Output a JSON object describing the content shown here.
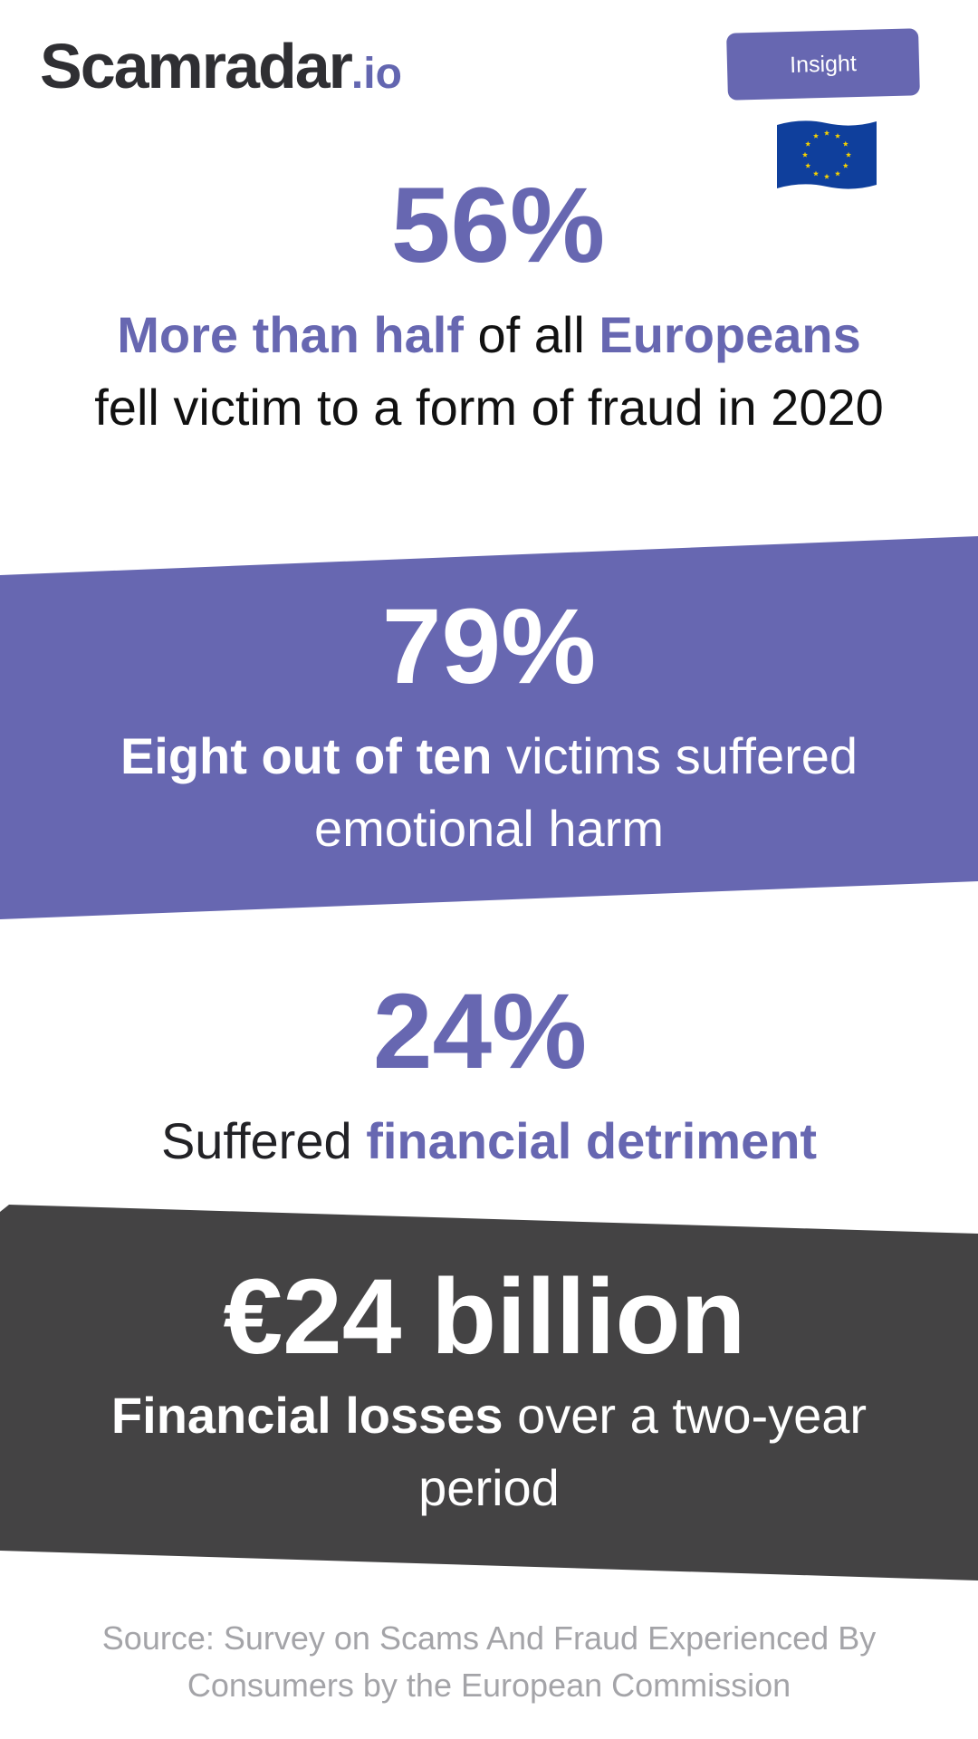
{
  "logo": {
    "name": "Scamradar",
    "tld": ".io"
  },
  "badge": {
    "label": "Insight"
  },
  "flag": {
    "icon": "eu-flag-icon",
    "field": "#0f3f9c",
    "stars": "#f5d000"
  },
  "colors": {
    "accent": "#6767b1",
    "dark_band": "#444344",
    "text": "#111111",
    "source": "#a4a4a8"
  },
  "stats": [
    {
      "value": "56%",
      "line1": [
        {
          "text": "More than half",
          "style": "accent-bold"
        },
        {
          "text": " of all ",
          "style": "plain"
        },
        {
          "text": "Europeans",
          "style": "accent-bold"
        }
      ],
      "line2": "fell victim to a form of fraud in 2020"
    },
    {
      "value": "79%",
      "line1": [
        {
          "text": "Eight out of ten",
          "style": "bold"
        },
        {
          "text": " victims suffered",
          "style": "plain"
        }
      ],
      "line2": "emotional harm"
    },
    {
      "value": "24%",
      "line1": [
        {
          "text": "Suffered ",
          "style": "plain"
        },
        {
          "text": "financial detriment",
          "style": "accent-bold"
        }
      ]
    },
    {
      "value": "€24 billion",
      "line1": [
        {
          "text": "Financial losses",
          "style": "bold"
        },
        {
          "text": " over a two-year",
          "style": "plain"
        }
      ],
      "line2": "period"
    }
  ],
  "source": {
    "line1": "Source: Survey on Scams And Fraud Experienced By",
    "line2": "Consumers by the European Commission"
  }
}
